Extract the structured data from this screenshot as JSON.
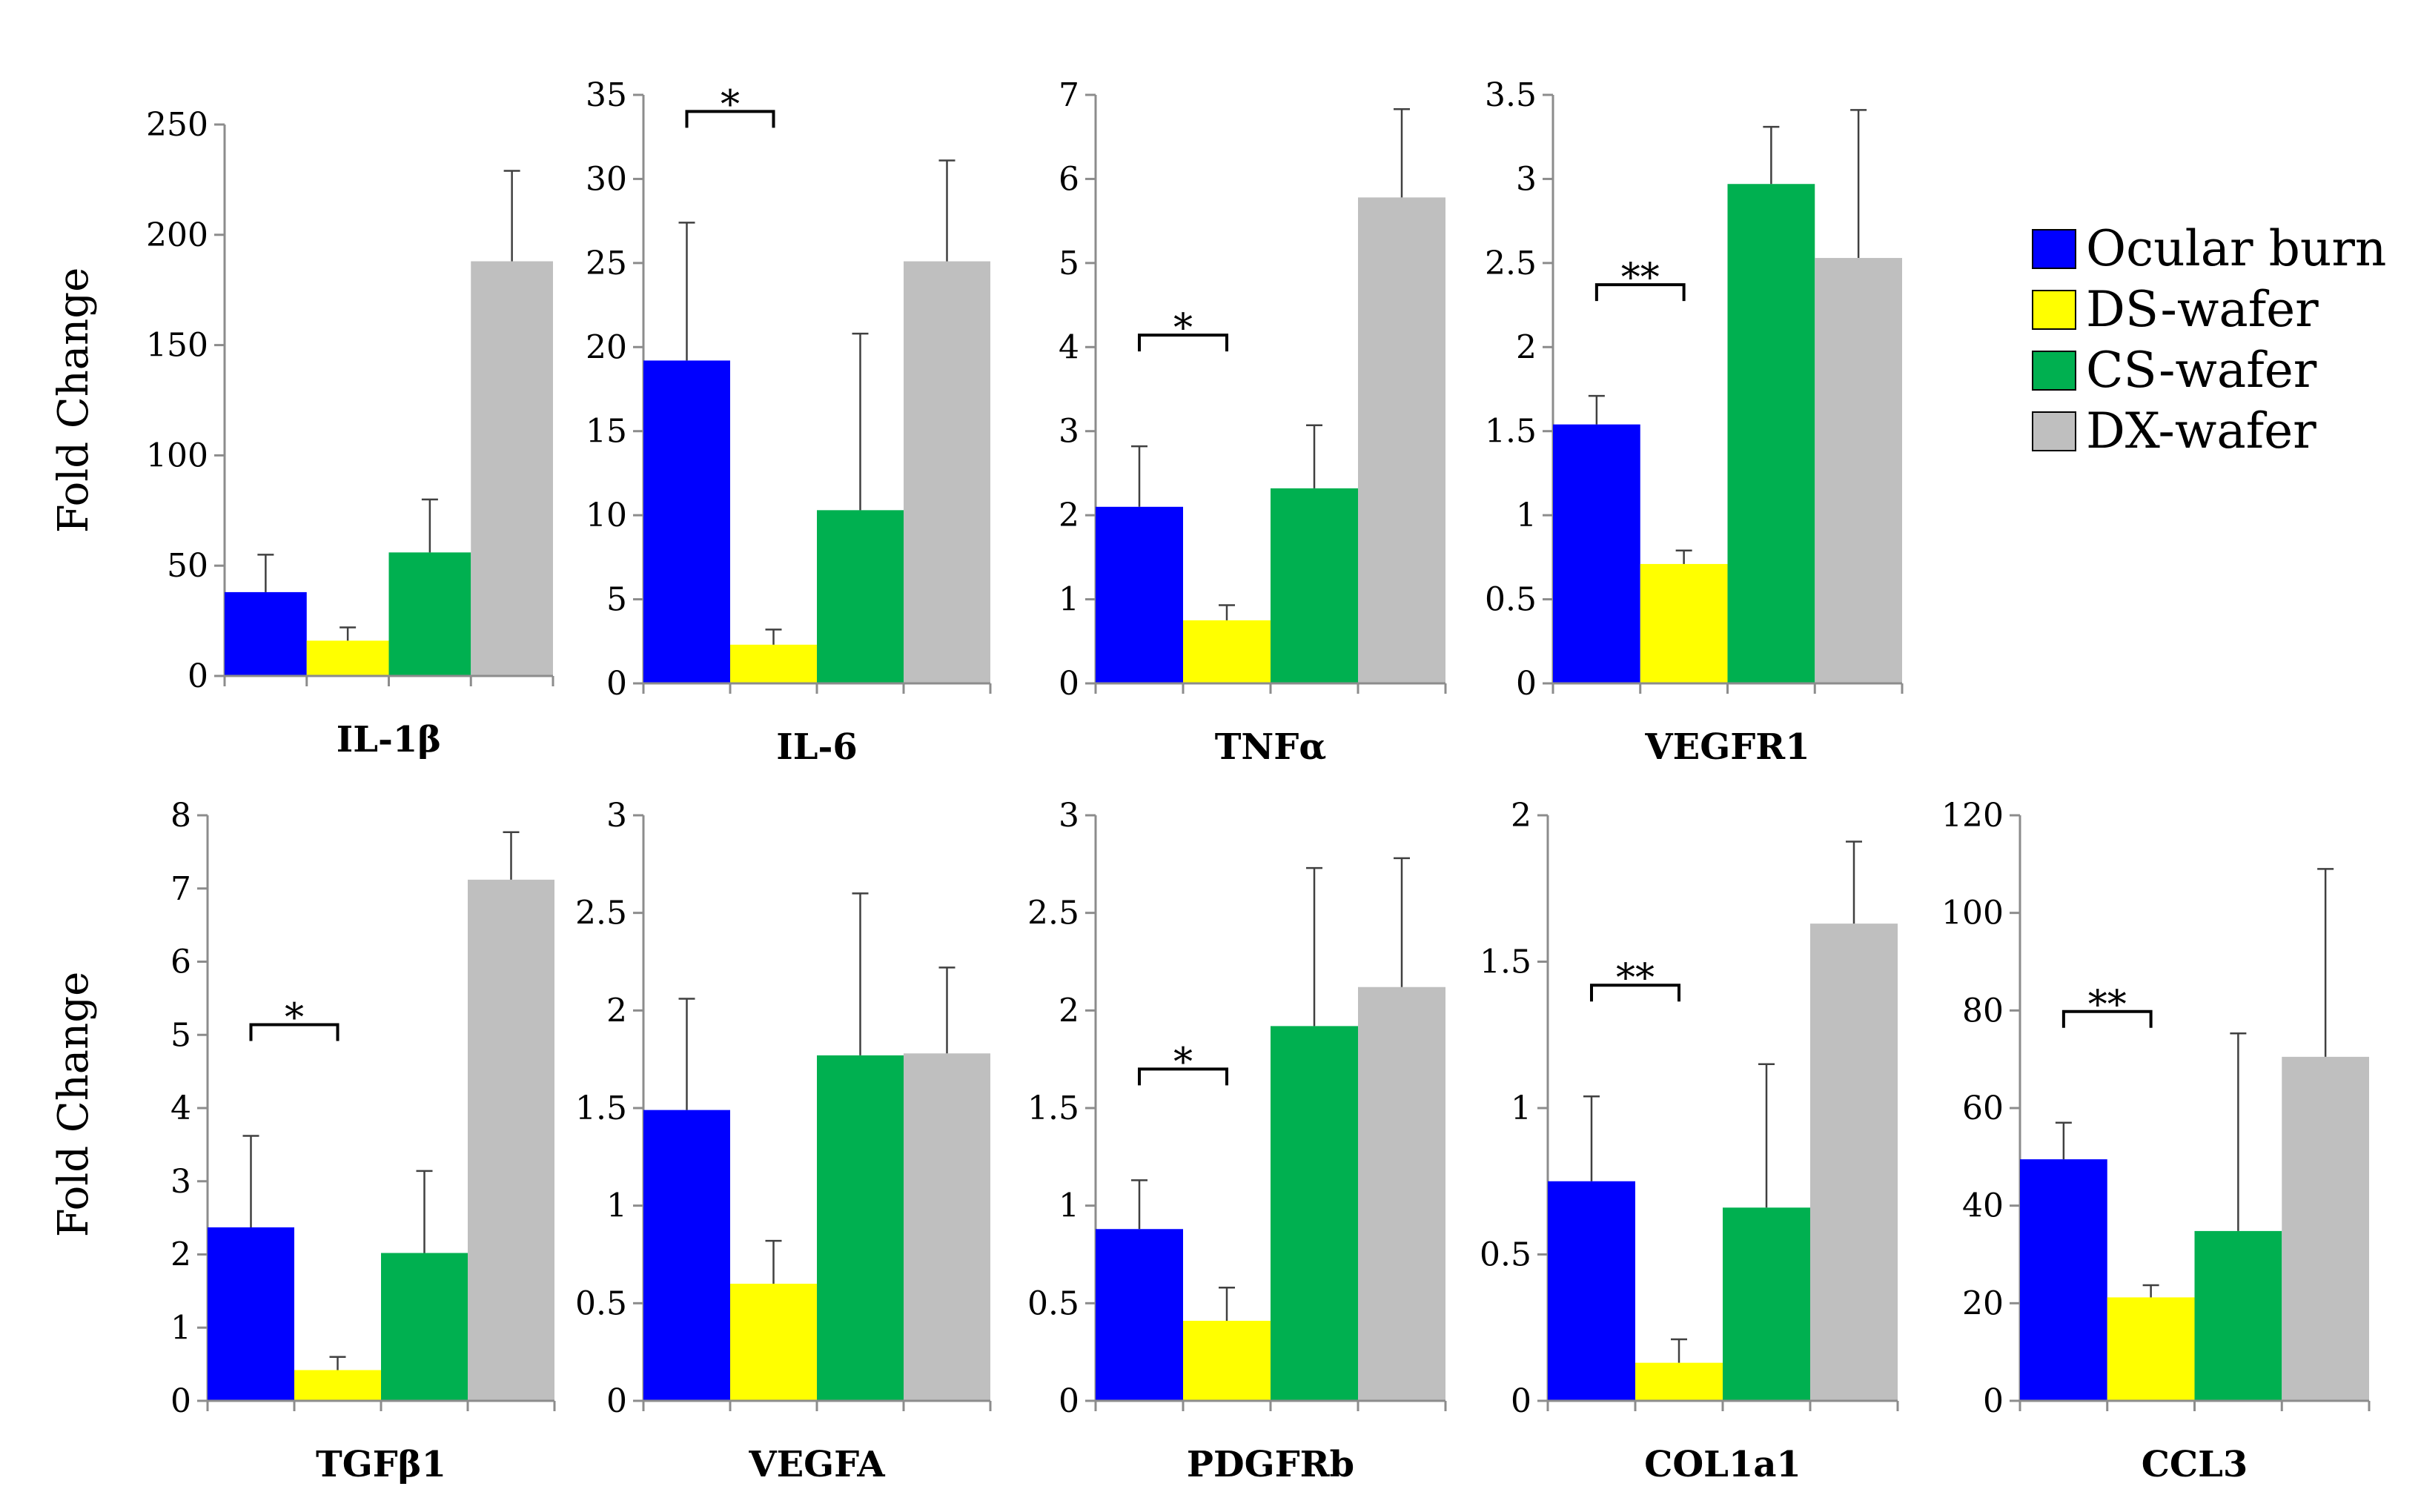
{
  "chart_data": {
    "type": "bar",
    "ylabel": "Fold Change",
    "legend_position": "top-right",
    "series": [
      {
        "name": "Ocular burn",
        "color": "#0000FF"
      },
      {
        "name": "DS-wafer",
        "color": "#FFFF00"
      },
      {
        "name": "CS-wafer",
        "color": "#00B050"
      },
      {
        "name": "DX-wafer",
        "color": "#BFBFBF"
      }
    ],
    "panels": [
      {
        "label": "IL-1β",
        "ylim": [
          0,
          250
        ],
        "ticks": [
          "0",
          "50",
          "100",
          "150",
          "200",
          "250"
        ],
        "values": [
          38,
          16,
          56,
          188
        ],
        "errors": [
          17,
          6,
          24,
          41
        ],
        "significance": {
          "label": "",
          "between": [
            0,
            1
          ]
        }
      },
      {
        "label": "IL-6",
        "ylim": [
          0,
          35
        ],
        "ticks": [
          "0",
          "5",
          "10",
          "15",
          "20",
          "25",
          "30",
          "35"
        ],
        "values": [
          19.2,
          2.3,
          10.3,
          25.1
        ],
        "errors": [
          8.2,
          0.9,
          10.5,
          6.0
        ],
        "significance": {
          "label": "*",
          "between": [
            0,
            1
          ]
        }
      },
      {
        "label": "TNFα",
        "ylim": [
          0,
          7
        ],
        "ticks": [
          "0",
          "1",
          "2",
          "3",
          "4",
          "5",
          "6",
          "7"
        ],
        "values": [
          2.1,
          0.75,
          2.32,
          5.78
        ],
        "errors": [
          0.72,
          0.18,
          0.75,
          1.05
        ],
        "significance": {
          "label": "*",
          "between": [
            0,
            1
          ]
        }
      },
      {
        "label": "VEGFR1",
        "ylim": [
          0,
          3.5
        ],
        "ticks": [
          "0",
          "0.5",
          "1",
          "1.5",
          "2",
          "2.5",
          "3",
          "3.5"
        ],
        "values": [
          1.54,
          0.71,
          2.97,
          2.53
        ],
        "errors": [
          0.17,
          0.08,
          0.34,
          0.88
        ],
        "significance": {
          "label": "**",
          "between": [
            0,
            1
          ]
        }
      },
      {
        "label": "TGFβ1",
        "ylim": [
          0,
          8
        ],
        "ticks": [
          "0",
          "1",
          "2",
          "3",
          "4",
          "5",
          "6",
          "7",
          "8"
        ],
        "values": [
          2.37,
          0.42,
          2.02,
          7.12
        ],
        "errors": [
          1.25,
          0.18,
          1.12,
          0.65
        ],
        "significance": {
          "label": "*",
          "between": [
            0,
            1
          ]
        }
      },
      {
        "label": "VEGFA",
        "ylim": [
          0,
          3
        ],
        "ticks": [
          "0",
          "0.5",
          "1",
          "1.5",
          "2",
          "2.5",
          "3"
        ],
        "values": [
          1.49,
          0.6,
          1.77,
          1.78
        ],
        "errors": [
          0.57,
          0.22,
          0.83,
          0.44
        ],
        "significance": {
          "label": "",
          "between": [
            0,
            1
          ]
        }
      },
      {
        "label": "PDGFRb",
        "ylim": [
          0,
          3
        ],
        "ticks": [
          "0",
          "0.5",
          "1",
          "1.5",
          "2",
          "2.5",
          "3"
        ],
        "values": [
          0.88,
          0.41,
          1.92,
          2.12
        ],
        "errors": [
          0.25,
          0.17,
          0.81,
          0.66
        ],
        "significance": {
          "label": "*",
          "between": [
            0,
            1
          ]
        }
      },
      {
        "label": "COL1a1",
        "ylim": [
          0,
          2
        ],
        "ticks": [
          "0",
          "0.5",
          "1",
          "1.5",
          "2"
        ],
        "values": [
          0.75,
          0.13,
          0.66,
          1.63
        ],
        "errors": [
          0.29,
          0.08,
          0.49,
          0.28
        ],
        "significance": {
          "label": "**",
          "between": [
            0,
            1
          ]
        }
      },
      {
        "label": "CCL3",
        "ylim": [
          0,
          120
        ],
        "ticks": [
          "0",
          "20",
          "40",
          "60",
          "80",
          "100",
          "120"
        ],
        "values": [
          49.5,
          21.2,
          34.8,
          70.5
        ],
        "errors": [
          7.5,
          2.5,
          40.5,
          38.5
        ],
        "significance": {
          "label": "**",
          "between": [
            0,
            1
          ]
        }
      }
    ]
  }
}
